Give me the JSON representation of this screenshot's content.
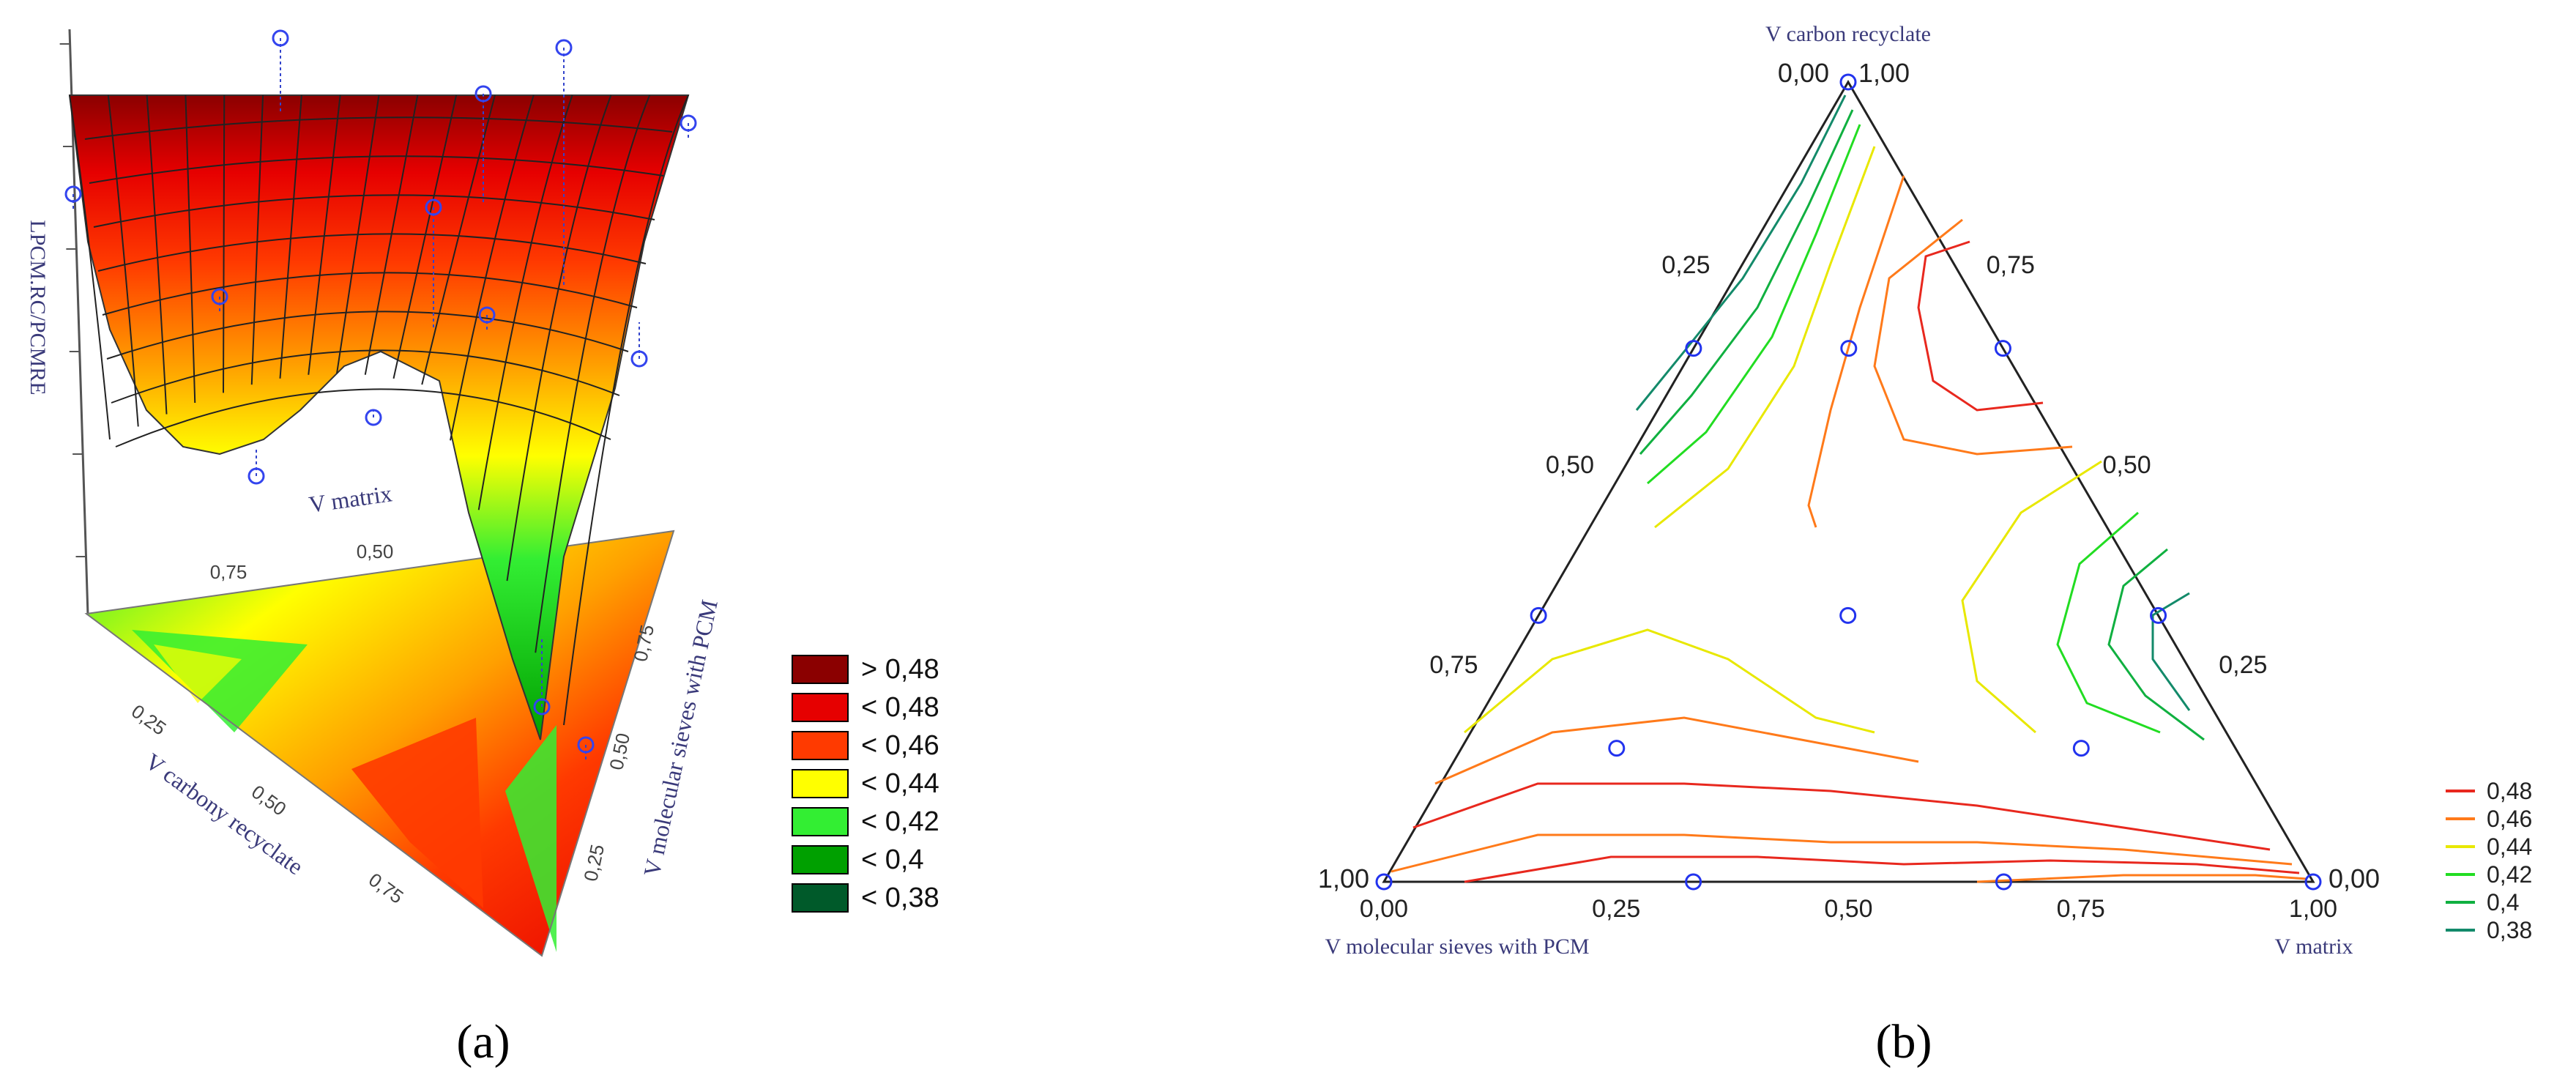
{
  "panel_a": {
    "caption": "(a)",
    "zlabel": "LPCM.RC/PCMRE",
    "axis_matrix": "V matrix",
    "axis_carbon": "V carbony recyclate",
    "axis_sieves": "V molecular sieves with PCM",
    "ticks_matrix": [
      "0,75",
      "0,50"
    ],
    "ticks_carbon": [
      "0,25",
      "0,50",
      "0,75"
    ],
    "ticks_sieves": [
      "0,75",
      "0,50",
      "0,25"
    ],
    "legend": [
      {
        "label": "> 0,48",
        "color": "#8b0000"
      },
      {
        "label": "< 0,48",
        "color": "#e60000"
      },
      {
        "label": "< 0,46",
        "color": "#ff3a00"
      },
      {
        "label": "< 0,44",
        "color": "#ffff00"
      },
      {
        "label": "< 0,42",
        "color": "#33ee33"
      },
      {
        "label": "< 0,4",
        "color": "#00a000"
      },
      {
        "label": "< 0,38",
        "color": "#005a2a"
      }
    ]
  },
  "panel_b": {
    "caption": "(b)",
    "axis_top": "V carbon recyclate",
    "axis_bottom_left": "V molecular sieves with PCM",
    "axis_bottom_right": "V matrix",
    "vertex_top_left": "0,00",
    "vertex_top_right": "1,00",
    "vertex_left_left": "1,00",
    "vertex_right_right": "0,00",
    "bottom_ticks": [
      "0,00",
      "0,25",
      "0,50",
      "0,75",
      "1,00"
    ],
    "left_ticks": [
      "0,25",
      "0,50",
      "0,75"
    ],
    "right_ticks": [
      "0,75",
      "0,50",
      "0,25"
    ],
    "legend": [
      {
        "label": "0,48",
        "color": "#e8281e"
      },
      {
        "label": "0,46",
        "color": "#ff7a1a"
      },
      {
        "label": "0,44",
        "color": "#e8e800"
      },
      {
        "label": "0,42",
        "color": "#22dd22"
      },
      {
        "label": "0,4",
        "color": "#10b040"
      },
      {
        "label": "0,38",
        "color": "#138a6a"
      }
    ]
  },
  "chart_data": [
    {
      "type": "surface",
      "panel": "a",
      "zlabel": "LPCM.RC/PCMRE",
      "axes": [
        "V matrix",
        "V carbony recyclate",
        "V molecular sieves with PCM"
      ],
      "legend": [
        "> 0,48",
        "< 0,48",
        "< 0,46",
        "< 0,44",
        "< 0,42",
        "< 0,4",
        "< 0,38"
      ]
    },
    {
      "type": "ternary-contour",
      "panel": "b",
      "axes": [
        "V carbon recyclate",
        "V molecular sieves with PCM",
        "V matrix"
      ],
      "contour_levels": [
        0.48,
        0.46,
        0.44,
        0.42,
        0.4,
        0.38
      ],
      "design_points": [
        {
          "matrix": 0.0,
          "carbon": 1.0,
          "sieves": 0.0
        },
        {
          "matrix": 0.0,
          "carbon": 0.0,
          "sieves": 1.0
        },
        {
          "matrix": 1.0,
          "carbon": 0.0,
          "sieves": 0.0
        },
        {
          "matrix": 0.333,
          "carbon": 0.0,
          "sieves": 0.667
        },
        {
          "matrix": 0.667,
          "carbon": 0.0,
          "sieves": 0.333
        },
        {
          "matrix": 0.0,
          "carbon": 0.667,
          "sieves": 0.333
        },
        {
          "matrix": 0.333,
          "carbon": 0.667,
          "sieves": 0.0
        },
        {
          "matrix": 0.0,
          "carbon": 0.333,
          "sieves": 0.667
        },
        {
          "matrix": 0.667,
          "carbon": 0.333,
          "sieves": 0.0
        },
        {
          "matrix": 0.333,
          "carbon": 0.333,
          "sieves": 0.333
        },
        {
          "matrix": 0.167,
          "carbon": 0.667,
          "sieves": 0.167
        },
        {
          "matrix": 0.167,
          "carbon": 0.167,
          "sieves": 0.667
        },
        {
          "matrix": 0.667,
          "carbon": 0.167,
          "sieves": 0.167
        }
      ]
    }
  ]
}
